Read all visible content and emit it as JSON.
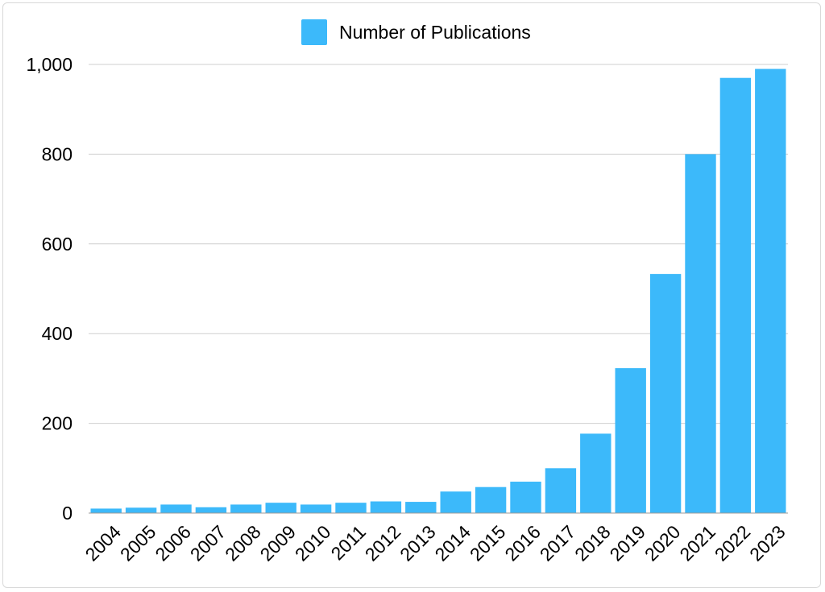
{
  "chart_data": {
    "type": "bar",
    "title": "",
    "xlabel": "",
    "ylabel": "",
    "categories": [
      "2004",
      "2005",
      "2006",
      "2007",
      "2008",
      "2009",
      "2010",
      "2011",
      "2012",
      "2013",
      "2014",
      "2015",
      "2016",
      "2017",
      "2018",
      "2019",
      "2020",
      "2021",
      "2022",
      "2023"
    ],
    "series": [
      {
        "name": "Number of Publications",
        "color": "#3cb9fa",
        "values": [
          10,
          12,
          19,
          13,
          19,
          23,
          19,
          23,
          26,
          25,
          48,
          58,
          70,
          100,
          177,
          323,
          533,
          800,
          970,
          990
        ]
      }
    ],
    "ylim": [
      0,
      1000
    ],
    "yticks": [
      "0",
      "200",
      "400",
      "600",
      "800",
      "1,000"
    ],
    "ytick_values": [
      0,
      200,
      400,
      600,
      800,
      1000
    ],
    "grid": true,
    "legend_position": "top-center",
    "x_tick_rotation": "diagonal"
  }
}
